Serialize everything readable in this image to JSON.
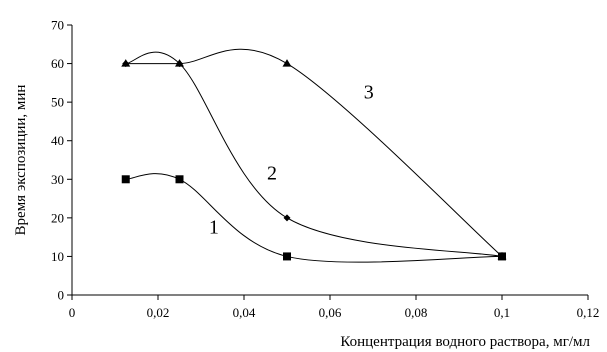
{
  "chart_data": {
    "type": "line",
    "xlabel": "Концентрация водного раствора, мг/мл",
    "ylabel": "Время экспозиции, мин",
    "xlim": [
      0,
      0.12
    ],
    "ylim": [
      0,
      70
    ],
    "x_ticks": [
      "0",
      "0,02",
      "0,04",
      "0,06",
      "0,08",
      "0,1",
      "0,12"
    ],
    "y_ticks": [
      "0",
      "10",
      "20",
      "30",
      "40",
      "50",
      "60",
      "70"
    ],
    "grid": false,
    "legend": "none",
    "smooth": true,
    "series": [
      {
        "label": "1",
        "marker": "square",
        "x": [
          0.0125,
          0.025,
          0.05,
          0.1
        ],
        "y": [
          30,
          30,
          10,
          10
        ]
      },
      {
        "label": "2",
        "marker": "diamond",
        "x": [
          0.0125,
          0.025,
          0.05,
          0.1
        ],
        "y": [
          60,
          60,
          20,
          10
        ]
      },
      {
        "label": "3",
        "marker": "triangle",
        "x": [
          0.0125,
          0.025,
          0.05,
          0.1
        ],
        "y": [
          60,
          60,
          60,
          10
        ]
      }
    ],
    "annotations": [
      {
        "text": "1",
        "x": 0.033,
        "y": 16
      },
      {
        "text": "2",
        "x": 0.0465,
        "y": 30
      },
      {
        "text": "3",
        "x": 0.069,
        "y": 51
      }
    ]
  }
}
